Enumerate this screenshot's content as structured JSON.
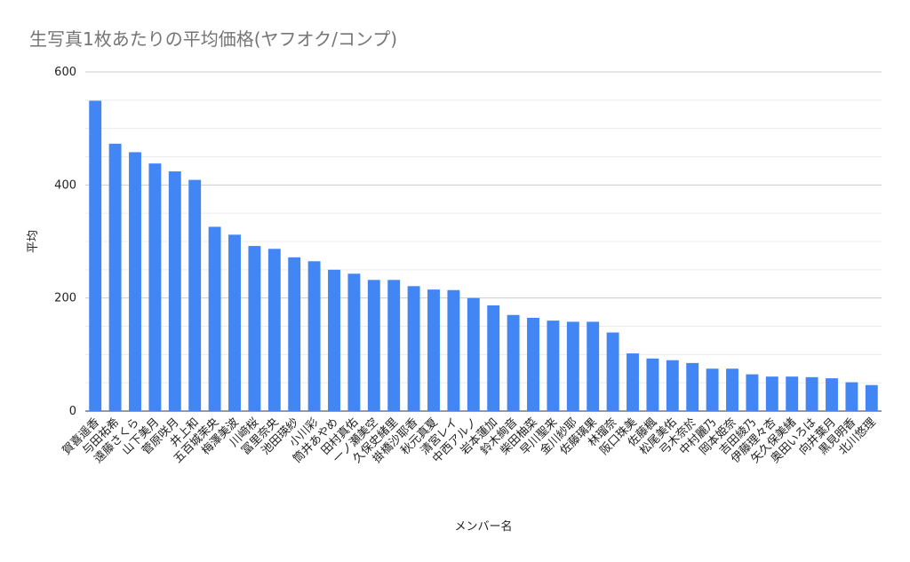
{
  "chart_data": {
    "type": "bar",
    "title": "生写真1枚あたりの平均価格(ヤフオク/コンプ)",
    "xlabel": "メンバー名",
    "ylabel": "平均",
    "ylim": [
      0,
      600
    ],
    "yticks": [
      0,
      200,
      400,
      600
    ],
    "grid": true,
    "bar_color": "#4285f4",
    "categories": [
      "賀喜遥香",
      "与田祐希",
      "遠藤さくら",
      "山下美月",
      "菅原咲月",
      "井上和",
      "五百城茉央",
      "梅澤美波",
      "川﨑桜",
      "冨里奈央",
      "池田瑛紗",
      "小川彩",
      "筒井あやめ",
      "田村真佑",
      "一ノ瀬美空",
      "久保史緒里",
      "掛橋沙耶香",
      "秋元真夏",
      "清宮レイ",
      "中西アルノ",
      "岩本蓮加",
      "鈴木絢音",
      "柴田柚菜",
      "早川聖来",
      "金川紗耶",
      "佐藤璃果",
      "林瑠奈",
      "阪口珠美",
      "佐藤楓",
      "松尾美佑",
      "弓木奈於",
      "中村麗乃",
      "岡本姫奈",
      "吉田綾乃",
      "伊藤理々杏",
      "矢久保美緒",
      "奥田いろは",
      "向井葉月",
      "黒見明香",
      "北川悠理"
    ],
    "values": [
      549,
      473,
      458,
      438,
      424,
      409,
      326,
      312,
      292,
      287,
      272,
      265,
      250,
      243,
      232,
      232,
      221,
      215,
      214,
      200,
      187,
      170,
      165,
      160,
      158,
      158,
      139,
      102,
      93,
      90,
      85,
      75,
      75,
      65,
      61,
      61,
      60,
      58,
      51,
      46
    ]
  }
}
